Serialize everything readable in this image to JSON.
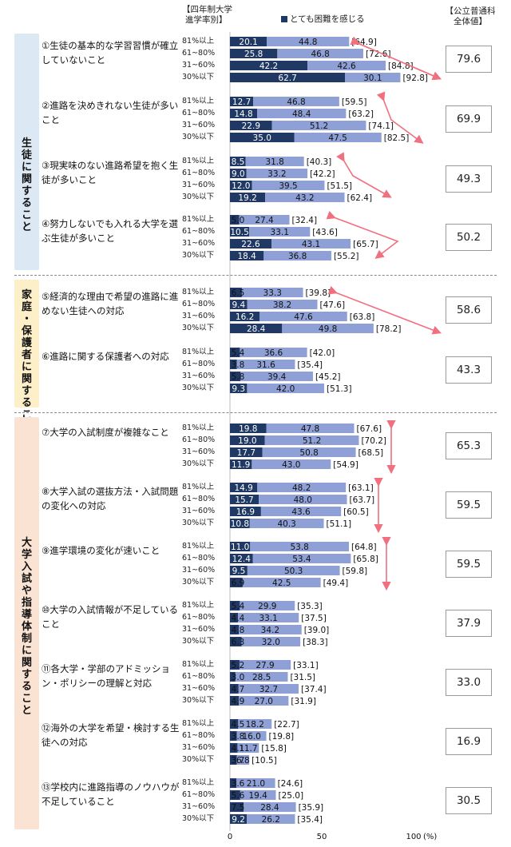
{
  "header": {
    "band_title_line1": "【四年制大学",
    "band_title_line2": "進学率別】",
    "legend_label": "とても困難を感じる",
    "total_title_line1": "【公立普通科",
    "total_title_line2": "全体値】"
  },
  "colors": {
    "dark": "#1f3864",
    "light": "#8ea0d6",
    "arrow": "#f07080",
    "section_blue": "#dde8f5",
    "section_yellow": "#fdf0c8",
    "section_peach": "#fbe3d3"
  },
  "sections": [
    {
      "label": "生徒に関すること",
      "color": "#dde8f5"
    },
    {
      "label": "家庭・保護者に関すること",
      "color": "#fdf0c8"
    },
    {
      "label": "大学入試や指導体制に関すること",
      "color": "#fbe3d3"
    }
  ],
  "chart_data": {
    "type": "bar",
    "orientation": "horizontal",
    "stacked": true,
    "bands": [
      "81%以上",
      "61~80%",
      "31~60%",
      "30%以下"
    ],
    "series_names": [
      "とても困難を感じる",
      ""
    ],
    "x_ticks": [
      "0",
      "50",
      "100"
    ],
    "x_unit": "(%)",
    "xlim": [
      0,
      100
    ],
    "items": [
      {
        "label": "①生徒の基本的な学習習慣が確立していないこと",
        "total": "79.6",
        "dark": [
          "20.1",
          "25.8",
          "42.2",
          "62.7"
        ],
        "light": [
          "44.8",
          "46.8",
          "42.6",
          "30.1"
        ],
        "sum": [
          "[64.9]",
          "[72.6]",
          "[84.8]",
          "[92.8]"
        ]
      },
      {
        "label": "②進路を決めきれない生徒が多いこと",
        "total": "69.9",
        "dark": [
          "12.7",
          "14.8",
          "22.9",
          "35.0"
        ],
        "light": [
          "46.8",
          "48.4",
          "51.2",
          "47.5"
        ],
        "sum": [
          "[59.5]",
          "[63.2]",
          "[74.1]",
          "[82.5]"
        ]
      },
      {
        "label": "③現実味のない進路希望を抱く生徒が多いこと",
        "total": "49.3",
        "dark": [
          "8.5",
          "9.0",
          "12.0",
          "19.2"
        ],
        "light": [
          "31.8",
          "33.2",
          "39.5",
          "43.2"
        ],
        "sum": [
          "[40.3]",
          "[42.2]",
          "[51.5]",
          "[62.4]"
        ]
      },
      {
        "label": "④努力しないでも入れる大学を選ぶ生徒が多いこと",
        "total": "50.2",
        "dark": [
          "5.0",
          "10.5",
          "22.6",
          "18.4"
        ],
        "light": [
          "27.4",
          "33.1",
          "43.1",
          "36.8"
        ],
        "sum": [
          "[32.4]",
          "[43.6]",
          "[65.7]",
          "[55.2]"
        ]
      },
      {
        "label": "⑤経済的な理由で希望の進路に進めない生徒への対応",
        "total": "58.6",
        "dark": [
          "6.5",
          "9.4",
          "16.2",
          "28.4"
        ],
        "light": [
          "33.3",
          "38.2",
          "47.6",
          "49.8"
        ],
        "sum": [
          "[39.8]",
          "[47.6]",
          "[63.8]",
          "[78.2]"
        ]
      },
      {
        "label": "⑥進路に関する保護者への対応",
        "total": "43.3",
        "dark": [
          "5.4",
          "3.8",
          "5.8",
          "9.3"
        ],
        "light": [
          "36.6",
          "31.6",
          "39.4",
          "42.0"
        ],
        "sum": [
          "[42.0]",
          "[35.4]",
          "[45.2]",
          "[51.3]"
        ]
      },
      {
        "label": "⑦大学の入試制度が複雑なこと",
        "total": "65.3",
        "dark": [
          "19.8",
          "19.0",
          "17.7",
          "11.9"
        ],
        "light": [
          "47.8",
          "51.2",
          "50.8",
          "43.0"
        ],
        "sum": [
          "[67.6]",
          "[70.2]",
          "[68.5]",
          "[54.9]"
        ]
      },
      {
        "label": "⑧大学入試の選抜方法・入試問題の変化への対応",
        "total": "59.5",
        "dark": [
          "14.9",
          "15.7",
          "16.9",
          "10.8"
        ],
        "light": [
          "48.2",
          "48.0",
          "43.6",
          "40.3"
        ],
        "sum": [
          "[63.1]",
          "[63.7]",
          "[60.5]",
          "[51.1]"
        ]
      },
      {
        "label": "⑨進学環境の変化が速いこと",
        "total": "59.5",
        "dark": [
          "11.0",
          "12.4",
          "9.5",
          "6.9"
        ],
        "light": [
          "53.8",
          "53.4",
          "50.3",
          "42.5"
        ],
        "sum": [
          "[64.8]",
          "[65.8]",
          "[59.8]",
          "[49.4]"
        ]
      },
      {
        "label": "⑩大学の入試情報が不足していること",
        "total": "37.9",
        "dark": [
          "5.4",
          "4.4",
          "4.8",
          "6.3"
        ],
        "light": [
          "29.9",
          "33.1",
          "34.2",
          "32.0"
        ],
        "sum": [
          "[35.3]",
          "[37.5]",
          "[39.0]",
          "[38.3]"
        ]
      },
      {
        "label": "⑪各大学・学部のアドミッション・ポリシーの理解と対応",
        "total": "33.0",
        "dark": [
          "5.2",
          "3.0",
          "4.7",
          "4.9"
        ],
        "light": [
          "27.9",
          "28.5",
          "32.7",
          "27.0"
        ],
        "sum": [
          "[33.1]",
          "[31.5]",
          "[37.4]",
          "[31.9]"
        ]
      },
      {
        "label": "⑫海外の大学を希望・検討する生徒への対応",
        "total": "16.9",
        "dark": [
          "4.5",
          "3.8",
          "4.1",
          "3.7"
        ],
        "light": [
          "18.2",
          "16.0",
          "11.7",
          "6.8"
        ],
        "sum": [
          "[22.7]",
          "[19.8]",
          "[15.8]",
          "[10.5]"
        ]
      },
      {
        "label": "⑬学校内に進路指導のノウハウが不足していること",
        "total": "30.5",
        "dark": [
          "3.6",
          "5.6",
          "7.5",
          "9.2"
        ],
        "light": [
          "21.0",
          "19.4",
          "28.4",
          "26.2"
        ],
        "sum": [
          "[24.6]",
          "[25.0]",
          "[35.9]",
          "[35.4]"
        ]
      }
    ]
  }
}
